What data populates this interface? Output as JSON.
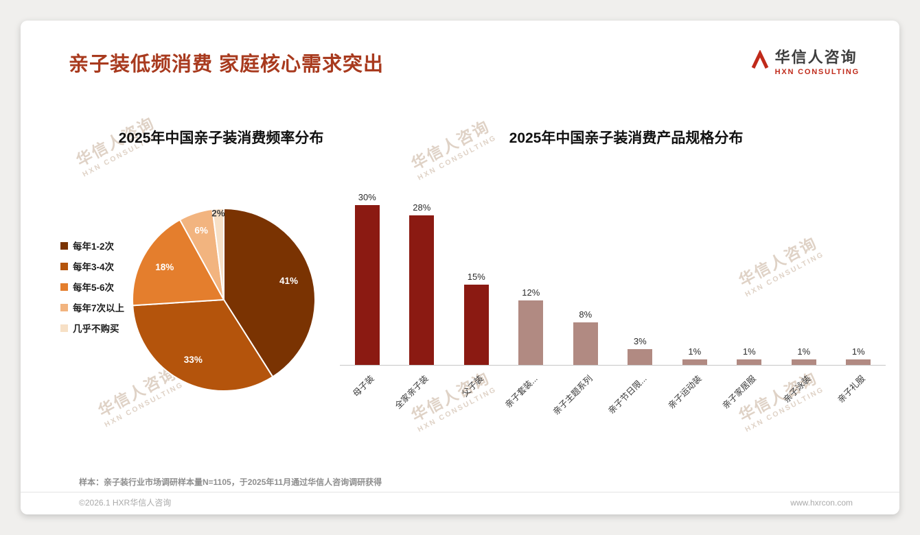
{
  "header": {
    "title": "亲子装低频消费 家庭核心需求突出",
    "logo": {
      "cn": "华信人咨询",
      "en": "HXN CONSULTING"
    }
  },
  "watermark": {
    "line1": "华信人咨询",
    "line2": "HXN CONSULTING"
  },
  "chart_data": [
    {
      "type": "pie",
      "title": "2025年中国亲子装消费频率分布",
      "categories": [
        "每年1-2次",
        "每年3-4次",
        "每年5-6次",
        "每年7次以上",
        "几乎不购买"
      ],
      "values": [
        41,
        33,
        18,
        6,
        2
      ],
      "labels": [
        "41%",
        "33%",
        "18%",
        "6%",
        "2%"
      ],
      "colors": [
        "#7A3302",
        "#B4540C",
        "#E47E2D",
        "#F2B47F",
        "#F7E0C6"
      ],
      "legend_position": "left",
      "unit": "%"
    },
    {
      "type": "bar",
      "title": "2025年中国亲子装消费产品规格分布",
      "categories": [
        "母子装",
        "全家亲子装",
        "父子装",
        "亲子套装...",
        "亲子主题系列",
        "亲子节日限...",
        "亲子运动装",
        "亲子家居服",
        "亲子泳装",
        "亲子礼服"
      ],
      "values": [
        30,
        28,
        15,
        12,
        8,
        3,
        1,
        1,
        1,
        1
      ],
      "labels": [
        "30%",
        "28%",
        "15%",
        "12%",
        "8%",
        "3%",
        "1%",
        "1%",
        "1%",
        "1%"
      ],
      "colors": [
        "#8B1A12",
        "#8B1A12",
        "#8B1A12",
        "#B18A82",
        "#B18A82",
        "#B18A82",
        "#B18A82",
        "#B18A82",
        "#B18A82",
        "#B18A82"
      ],
      "ylim": [
        0,
        32
      ],
      "grid": false,
      "legend": "none"
    }
  ],
  "footnote": "样本：亲子装行业市场调研样本量N=1105，于2025年11月通过华信人咨询调研获得",
  "footer": {
    "copyright": "©2026.1 HXR华信人咨询",
    "website": "www.hxrcon.com"
  }
}
